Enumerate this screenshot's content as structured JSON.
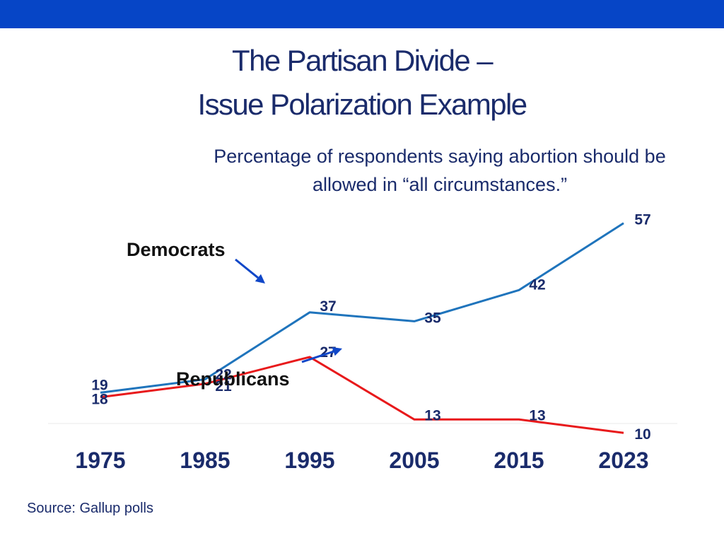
{
  "header": {
    "bar_color": "#0645c6"
  },
  "title": {
    "line1": "The Partisan Divide –",
    "line2": "Issue Polarization Example"
  },
  "subtitle": "Percentage of respondents saying abortion should be allowed in “all circumstances.”",
  "source": "Source: Gallup polls",
  "colors": {
    "text": "#1a2b6b",
    "dem": "#1f74bc",
    "rep": "#e8191b",
    "arrow": "#1047c8",
    "axis_line": "#e8e8e8"
  },
  "chart_data": {
    "type": "line",
    "categories": [
      "1975",
      "1985",
      "1995",
      "2005",
      "2015",
      "2023"
    ],
    "ylim": [
      0,
      60
    ],
    "series": [
      {
        "name": "Democrats",
        "values": [
          19,
          22,
          37,
          35,
          42,
          57
        ]
      },
      {
        "name": "Republicans",
        "values": [
          18,
          21,
          27,
          13,
          13,
          10
        ]
      }
    ],
    "annotations": [
      {
        "text": "Democrats",
        "series": "Democrats"
      },
      {
        "text": "Republicans",
        "series": "Republicans"
      }
    ],
    "xlabel": "",
    "ylabel": "",
    "grid": false,
    "legend": "none"
  }
}
